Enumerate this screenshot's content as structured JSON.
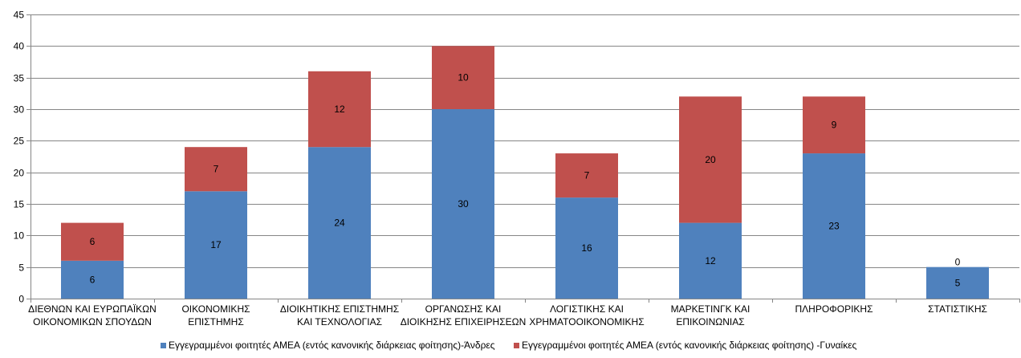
{
  "chart_data": {
    "type": "bar",
    "stacked": true,
    "categories": [
      [
        "ΔΙΕΘΝΩΝ ΚΑΙ ΕΥΡΩΠΑΪΚΩΝ",
        "ΟΙΚΟΝΟΜΙΚΩΝ ΣΠΟΥΔΩΝ"
      ],
      [
        "ΟΙΚΟΝΟΜΙΚΗΣ",
        "ΕΠΙΣΤΗΜΗΣ"
      ],
      [
        "ΔΙΟΙΚΗΤΙΚΗΣ ΕΠΙΣΤΗΜΗΣ",
        "ΚΑΙ ΤΕΧΝΟΛΟΓΙΑΣ"
      ],
      [
        "ΟΡΓΑΝΩΣΗΣ ΚΑΙ",
        "ΔΙΟΙΚΗΣΗΣ ΕΠΙΧΕΙΡΗΣΕΩΝ"
      ],
      [
        "ΛΟΓΙΣΤΙΚΗΣ ΚΑΙ",
        "ΧΡΗΜΑΤΟΟΙΚΟΝΟΜΙΚΗΣ"
      ],
      [
        "ΜΑΡΚΕΤΙΝΓΚ ΚΑΙ",
        "ΕΠΙΚΟΙΝΩΝΙΑΣ"
      ],
      [
        "ΠΛΗΡΟΦΟΡΙΚΗΣ"
      ],
      [
        "ΣΤΑΤΙΣΤΙΚΗΣ"
      ]
    ],
    "series": [
      {
        "name": "Εγγεγραμμένοι φοιτητές ΑΜΕΑ (εντός κανονικής διάρκειας φοίτησης)-Άνδρες",
        "color": "#4F81BD",
        "values": [
          6,
          17,
          24,
          30,
          16,
          12,
          23,
          5
        ]
      },
      {
        "name": "Εγγεγραμμένοι φοιτητές ΑΜΕΑ (εντός κανονικής διάρκειας φοίτησης) -Γυναίκες",
        "color": "#C0504D",
        "values": [
          6,
          7,
          12,
          10,
          7,
          20,
          9,
          0
        ]
      }
    ],
    "ylim": [
      0,
      45
    ],
    "yticks": [
      0,
      5,
      10,
      15,
      20,
      25,
      30,
      35,
      40,
      45
    ],
    "grid": true,
    "legend": "bottom",
    "title": "",
    "xlabel": "",
    "ylabel": ""
  }
}
